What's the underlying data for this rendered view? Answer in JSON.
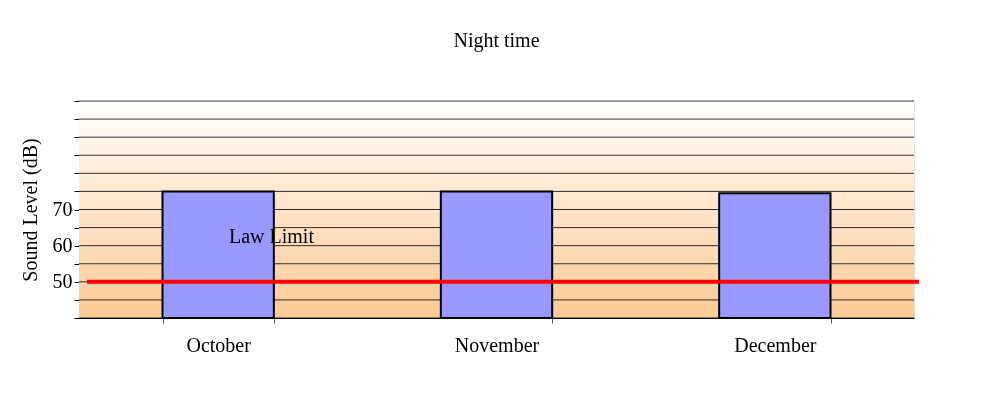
{
  "chart_data": {
    "type": "bar",
    "title": "Night time",
    "ylabel": "Sound Level (dB)",
    "categories": [
      "October",
      "November",
      "December"
    ],
    "series": [
      {
        "color": "#9999ff",
        "values": [
          75,
          75,
          74.5
        ]
      }
    ],
    "ylim": [
      40,
      100
    ],
    "yticks": [
      {
        "value": 40,
        "label": null
      },
      {
        "value": 45,
        "label": null
      },
      50,
      {
        "value": 55,
        "label": null
      },
      60,
      {
        "value": 65,
        "label": null
      },
      70,
      {
        "value": 75,
        "label": null
      },
      {
        "value": 80,
        "label": null
      },
      {
        "value": 85,
        "label": null
      },
      {
        "value": 90,
        "label": null
      },
      {
        "value": 95,
        "label": null
      },
      {
        "value": 100,
        "label": null
      }
    ],
    "ref_lines": [
      {
        "axis": "y",
        "value": 50,
        "label": "Law  Limit",
        "color": "#ff0000"
      }
    ],
    "grid": "y"
  }
}
